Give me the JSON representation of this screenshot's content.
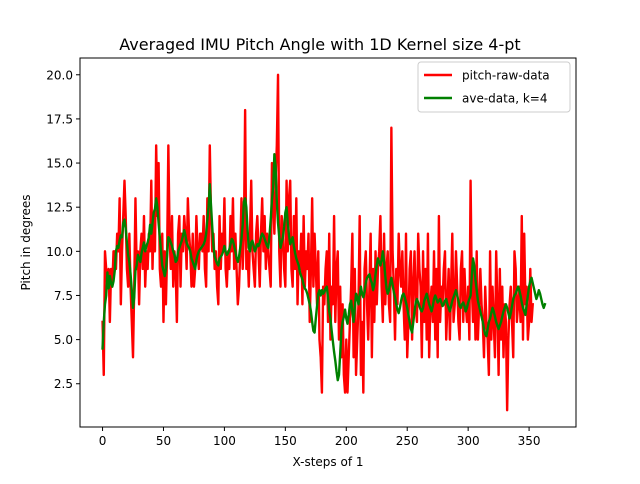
{
  "chart_data": {
    "type": "line",
    "title": "Averaged IMU Pitch Angle with 1D Kernel size 4-pt",
    "xlabel": "X-steps of 1",
    "ylabel": "Pitch in degrees",
    "xlim": [
      -18.5,
      388.5
    ],
    "ylim": [
      0.05,
      20.95
    ],
    "x_ticks": [
      0,
      50,
      100,
      150,
      200,
      250,
      300,
      350
    ],
    "x_tick_labels": [
      "0",
      "50",
      "100",
      "150",
      "200",
      "250",
      "300",
      "350"
    ],
    "y_ticks": [
      2.5,
      5.0,
      7.5,
      10.0,
      12.5,
      15.0,
      17.5,
      20.0
    ],
    "y_tick_labels": [
      "2.5",
      "5.0",
      "7.5",
      "10.0",
      "12.5",
      "15.0",
      "17.5",
      "20.0"
    ],
    "grid": false,
    "legend_position": "top-right",
    "series": [
      {
        "name": "pitch-raw-data",
        "color": "#ff0000",
        "x_start": 0,
        "x_step": 1,
        "values": [
          6,
          3,
          10,
          9,
          8,
          9,
          6,
          9,
          8,
          10,
          10,
          9,
          11,
          10,
          13,
          7,
          10,
          12,
          14,
          12,
          9,
          8,
          11,
          8,
          6,
          4,
          8,
          13,
          9,
          10,
          7,
          10,
          11,
          9,
          12,
          8,
          10,
          9,
          11,
          10,
          14,
          9,
          12,
          10,
          16,
          12,
          15,
          9,
          8,
          11,
          6,
          10,
          7,
          10,
          16,
          11,
          9,
          12,
          8,
          10,
          9,
          6,
          11,
          12,
          8,
          11,
          10,
          12,
          11,
          9,
          13,
          11,
          10,
          8,
          11,
          8,
          9,
          12,
          10,
          9,
          11,
          11,
          10,
          12,
          9,
          8,
          13,
          10,
          16,
          12,
          10,
          11,
          9,
          10,
          8,
          7,
          12,
          9,
          11,
          10,
          13,
          9,
          8,
          10,
          9,
          12,
          10,
          13,
          9,
          11,
          9,
          7,
          8,
          10,
          13,
          9,
          11,
          18,
          9,
          10,
          8,
          11,
          14,
          10,
          9,
          8,
          11,
          12,
          10,
          8,
          11,
          13,
          10,
          12,
          9,
          11,
          10,
          9,
          8,
          15,
          13,
          11,
          14,
          16,
          20,
          10,
          8,
          12,
          11,
          9,
          8,
          14,
          10,
          13,
          14,
          9,
          8,
          12,
          9,
          13,
          7,
          10,
          9,
          11,
          7,
          12,
          8,
          10,
          9,
          11,
          6,
          9,
          13,
          8,
          11,
          9,
          7,
          10,
          5,
          4,
          2,
          8,
          7,
          9,
          10,
          6,
          11,
          5,
          8,
          7,
          12,
          6,
          9,
          10,
          5,
          8,
          4,
          7,
          3,
          2,
          5,
          2,
          4,
          6,
          8,
          11,
          4,
          9,
          3,
          5,
          7,
          12,
          3,
          6,
          2,
          9,
          10,
          7,
          5,
          8,
          11,
          4,
          9,
          6,
          10,
          7,
          9,
          10,
          12,
          8,
          6,
          11,
          7,
          9,
          10,
          7,
          6,
          17,
          10,
          8,
          5,
          9,
          7,
          11,
          9,
          8,
          10,
          7,
          5,
          11,
          4,
          6,
          9,
          10,
          5,
          8,
          10,
          7,
          6,
          11,
          9,
          8,
          4,
          10,
          6,
          9,
          5,
          11,
          4,
          7,
          8,
          6,
          10,
          5,
          9,
          4,
          12,
          6,
          8,
          7,
          9,
          10,
          5,
          7,
          9,
          5,
          8,
          11,
          6,
          7,
          10,
          8,
          6,
          5,
          9,
          10,
          6,
          9,
          7,
          6,
          8,
          5,
          14,
          8,
          6,
          9,
          5,
          10,
          5,
          7,
          9,
          7,
          6,
          4,
          8,
          6,
          5,
          3,
          10,
          5,
          8,
          6,
          4,
          10,
          7,
          3,
          9,
          5,
          8,
          4,
          7,
          6,
          1,
          5,
          7,
          8,
          6,
          4,
          10,
          9,
          6,
          7,
          8,
          6,
          12,
          5,
          11,
          7,
          8,
          5,
          6,
          9,
          6,
          7
        ]
      },
      {
        "name": "ave-data, k=4",
        "color": "#008000",
        "x_start": 0,
        "x_step": 1,
        "values": [
          4.5,
          6.0,
          7.0,
          7.5,
          8.8,
          7.9,
          8.6,
          8.2,
          8.0,
          8.3,
          8.9,
          10.0,
          10.3,
          10.2,
          10.6,
          10.9,
          10.8,
          11.6,
          11.8,
          11.3,
          10.5,
          9.8,
          9.4,
          8.7,
          7.8,
          6.8,
          7.4,
          8.9,
          9.2,
          9.8,
          9.6,
          9.4,
          9.9,
          10.2,
          10.5,
          10.0,
          10.3,
          10.5,
          10.8,
          11.5,
          11.0,
          11.6,
          12.2,
          12.4,
          13.0,
          12.5,
          11.6,
          10.8,
          10.0,
          9.2,
          8.9,
          8.6,
          9.0,
          9.8,
          10.8,
          10.7,
          10.5,
          10.3,
          10.0,
          9.8,
          9.4,
          9.5,
          10.0,
          10.2,
          10.4,
          10.6,
          10.9,
          11.2,
          10.9,
          10.5,
          10.3,
          10.2,
          10.0,
          9.6,
          9.4,
          9.2,
          9.0,
          9.5,
          9.8,
          10.0,
          10.1,
          10.2,
          10.3,
          10.4,
          10.6,
          11.0,
          11.8,
          12.5,
          13.8,
          12.6,
          11.4,
          10.3,
          9.7,
          9.5,
          9.3,
          9.2,
          9.6,
          9.7,
          9.8,
          10.0,
          10.3,
          10.0,
          9.8,
          9.9,
          10.1,
          10.4,
          10.7,
          10.6,
          10.3,
          10.0,
          9.6,
          9.4,
          9.7,
          10.2,
          10.7,
          11.5,
          12.8,
          13.0,
          12.5,
          11.2,
          10.2,
          10.0,
          10.5,
          10.6,
          10.3,
          10.0,
          10.2,
          10.4,
          10.3,
          10.5,
          10.8,
          11.0,
          10.9,
          10.7,
          10.5,
          10.3,
          10.2,
          10.9,
          11.8,
          12.9,
          13.6,
          15.5,
          14.8,
          12.8,
          11.6,
          10.8,
          10.2,
          10.5,
          10.8,
          11.4,
          12.2,
          12.5,
          11.6,
          10.9,
          10.4,
          10.6,
          10.8,
          10.3,
          9.9,
          9.6,
          9.4,
          9.2,
          8.8,
          8.6,
          8.4,
          8.1,
          7.9,
          7.8,
          7.6,
          7.3,
          7.0,
          6.6,
          6.0,
          5.5,
          5.4,
          6.2,
          6.9,
          7.6,
          7.8,
          7.5,
          7.8,
          7.6,
          7.7,
          7.9,
          8.0,
          7.4,
          6.6,
          6.2,
          5.5,
          4.9,
          4.3,
          3.8,
          3.2,
          2.7,
          3.0,
          4.2,
          5.5,
          6.0,
          6.3,
          6.7,
          6.2,
          5.9,
          6.4,
          7.0,
          7.2,
          6.6,
          6.0,
          6.8,
          7.6,
          7.4,
          7.0,
          7.5,
          8.0,
          7.6,
          7.4,
          7.7,
          8.2,
          8.5,
          8.6,
          8.7,
          8.4,
          8.2,
          7.8,
          8.1,
          8.7,
          9.2,
          9.6,
          9.4,
          9.2,
          9.5,
          10.0,
          9.4,
          8.6,
          7.9,
          7.6,
          7.8,
          8.2,
          8.5,
          8.1,
          7.7,
          7.4,
          7.0,
          6.7,
          6.5,
          6.8,
          7.2,
          7.5,
          7.6,
          7.4,
          7.1,
          6.8,
          6.4,
          6.0,
          5.6,
          5.4,
          6.0,
          6.6,
          7.1,
          7.3,
          7.1,
          6.9,
          6.7,
          6.6,
          6.8,
          7.2,
          7.4,
          7.6,
          7.3,
          7.0,
          6.8,
          6.6,
          6.9,
          7.3,
          7.5,
          7.3,
          7.1,
          7.2,
          7.3,
          7.1,
          6.9,
          7.0,
          7.2,
          7.3,
          7.0,
          6.8,
          6.6,
          6.9,
          7.2,
          7.4,
          7.6,
          7.8,
          7.5,
          7.2,
          6.9,
          6.8,
          7.0,
          7.1,
          6.9,
          6.6,
          6.8,
          7.1,
          7.3,
          7.5,
          8.6,
          9.6,
          9.2,
          8.4,
          7.8,
          7.2,
          6.9,
          6.6,
          6.3,
          6.0,
          5.6,
          5.3,
          5.2,
          5.6,
          6.0,
          6.2,
          6.5,
          6.8,
          6.6,
          6.3,
          6.0,
          5.8,
          5.6,
          5.8,
          6.0,
          6.3,
          6.6,
          6.8,
          7.0,
          6.8,
          6.5,
          6.2,
          6.5,
          6.9,
          7.3,
          7.5,
          7.6,
          7.8,
          8.0,
          7.8,
          7.5,
          7.1,
          6.8,
          6.6,
          6.4,
          7.0,
          7.5,
          8.0,
          8.3,
          8.5,
          8.2,
          7.9,
          7.6,
          7.3,
          7.5,
          7.8,
          7.6,
          7.3,
          7.0,
          6.8,
          7.0
        ]
      }
    ]
  }
}
